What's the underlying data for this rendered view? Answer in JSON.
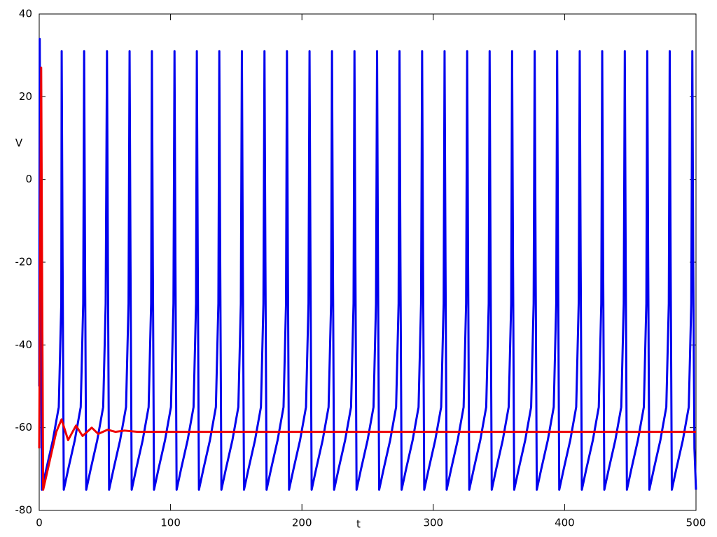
{
  "chart_data": {
    "type": "line",
    "x_label": "t",
    "y_label": "V",
    "xlim": [
      0,
      500
    ],
    "ylim": [
      -80,
      40
    ],
    "xticks": [
      0,
      100,
      200,
      300,
      400,
      500
    ],
    "yticks": [
      -80,
      -60,
      -40,
      -20,
      0,
      20,
      40
    ],
    "grid": false,
    "series": [
      {
        "color": "#0000ee",
        "x": [
          0,
          0.4,
          1.1,
          2,
          5.4,
          10.4,
          14.9,
          16.8,
          17.1,
          17.8,
          18.7,
          22.1,
          27.1,
          31.6,
          33.5,
          34.2,
          34.9,
          35.8,
          39.2,
          44.2,
          48.7,
          50.6,
          51.6,
          52.3,
          53.2,
          56.6,
          61.6,
          66.1,
          68,
          68.8,
          69.5,
          70.4,
          73.8,
          78.8,
          83.3,
          85.2,
          85.8,
          86.5,
          87.4,
          90.8,
          95.8,
          100.3,
          102.2,
          103,
          103.7,
          104.6,
          108,
          113,
          117.5,
          119.4,
          120,
          120.7,
          121.6,
          125,
          130,
          134.5,
          136.4,
          137.1,
          137.8,
          138.7,
          142.1,
          147.1,
          151.6,
          153.5,
          154.3,
          155,
          155.9,
          159.3,
          164.3,
          168.8,
          170.7,
          171.5,
          172.2,
          173.1,
          176.5,
          181.5,
          186,
          187.9,
          188.6,
          189.3,
          190.2,
          193.6,
          198.6,
          203.1,
          205,
          205.8,
          206.5,
          207.4,
          210.8,
          215.8,
          220.3,
          222.2,
          222.9,
          223.6,
          224.5,
          227.9,
          232.9,
          237.4,
          239.3,
          240,
          240.7,
          241.6,
          245,
          250,
          254.5,
          256.4,
          257.2,
          257.9,
          258.8,
          262.2,
          267.2,
          271.7,
          273.6,
          274.3,
          275,
          275.9,
          279.3,
          284.3,
          288.8,
          290.7,
          291.5,
          292.2,
          293.1,
          296.5,
          301.5,
          306,
          307.9,
          308.6,
          309.3,
          310.2,
          313.6,
          318.6,
          323.1,
          325,
          325.8,
          326.5,
          327.4,
          330.8,
          335.8,
          340.3,
          342.2,
          342.9,
          343.6,
          344.5,
          347.9,
          352.9,
          357.4,
          359.3,
          360,
          360.7,
          361.6,
          365,
          370,
          374.5,
          376.4,
          377.2,
          377.9,
          378.8,
          382.2,
          387.2,
          391.7,
          393.6,
          394.3,
          395,
          395.9,
          399.3,
          404.3,
          408.8,
          410.7,
          411.5,
          412.2,
          413.1,
          416.5,
          421.5,
          426,
          427.9,
          428.6,
          429.3,
          430.2,
          433.6,
          438.6,
          443.1,
          445,
          445.8,
          446.5,
          447.4,
          450.8,
          455.8,
          460.3,
          462.2,
          462.9,
          463.6,
          464.5,
          467.9,
          472.9,
          477.4,
          479.3,
          480,
          480.7,
          481.6,
          485,
          490,
          494.5,
          496.4,
          497.2,
          497.9,
          498.8,
          500
        ],
        "values": [
          -50,
          34,
          -20,
          -75,
          -70,
          -63,
          -55,
          -30,
          31,
          -20,
          -75,
          -70,
          -63,
          -55,
          -30,
          31,
          -20,
          -75,
          -70,
          -63,
          -55,
          -30,
          31,
          -20,
          -75,
          -70,
          -63,
          -55,
          -30,
          31,
          -20,
          -75,
          -70,
          -63,
          -55,
          -30,
          31,
          -20,
          -75,
          -70,
          -63,
          -55,
          -30,
          31,
          -20,
          -75,
          -70,
          -63,
          -55,
          -30,
          31,
          -20,
          -75,
          -70,
          -63,
          -55,
          -30,
          31,
          -20,
          -75,
          -70,
          -63,
          -55,
          -30,
          31,
          -20,
          -75,
          -70,
          -63,
          -55,
          -30,
          31,
          -20,
          -75,
          -70,
          -63,
          -55,
          -30,
          31,
          -20,
          -75,
          -70,
          -63,
          -55,
          -30,
          31,
          -20,
          -75,
          -70,
          -63,
          -55,
          -30,
          31,
          -20,
          -75,
          -70,
          -63,
          -55,
          -30,
          31,
          -20,
          -75,
          -70,
          -63,
          -55,
          -30,
          31,
          -20,
          -75,
          -70,
          -63,
          -55,
          -30,
          31,
          -20,
          -75,
          -70,
          -63,
          -55,
          -30,
          31,
          -20,
          -75,
          -70,
          -63,
          -55,
          -30,
          31,
          -20,
          -75,
          -70,
          -63,
          -55,
          -30,
          31,
          -20,
          -75,
          -70,
          -63,
          -55,
          -30,
          31,
          -20,
          -75,
          -70,
          -63,
          -55,
          -30,
          31,
          -20,
          -75,
          -70,
          -63,
          -55,
          -30,
          31,
          -20,
          -75,
          -70,
          -63,
          -55,
          -30,
          31,
          -20,
          -75,
          -70,
          -63,
          -55,
          -30,
          31,
          -20,
          -75,
          -70,
          -63,
          -55,
          -30,
          31,
          -20,
          -75,
          -70,
          -63,
          -55,
          -30,
          31,
          -20,
          -75,
          -70,
          -63,
          -55,
          -30,
          31,
          -20,
          -75,
          -70,
          -63,
          -55,
          -30,
          31,
          -20,
          -75,
          -70,
          -63,
          -55,
          -30,
          31,
          -20,
          -65,
          -75
        ]
      },
      {
        "color": "#ee0000",
        "x": [
          0,
          1.5,
          2.3,
          3,
          8,
          13,
          17,
          22,
          28,
          33,
          40,
          45,
          52,
          58,
          65,
          75,
          500
        ],
        "values": [
          -65,
          27,
          -30,
          -75,
          -68,
          -61,
          -58,
          -63,
          -59.5,
          -62,
          -60,
          -61.5,
          -60.5,
          -61,
          -60.7,
          -61,
          -61
        ]
      }
    ]
  }
}
